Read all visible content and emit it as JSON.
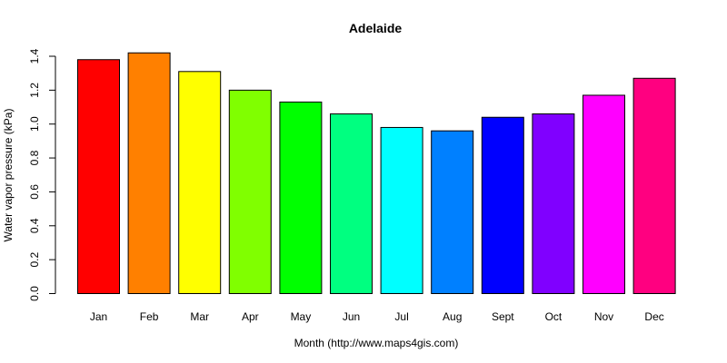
{
  "chart_data": {
    "type": "bar",
    "title": "Adelaide",
    "xlabel": "Month (http://www.maps4gis.com)",
    "ylabel": "Water vapor pressure (kPa)",
    "categories": [
      "Jan",
      "Feb",
      "Mar",
      "Apr",
      "May",
      "Jun",
      "Jul",
      "Aug",
      "Sept",
      "Oct",
      "Nov",
      "Dec"
    ],
    "values": [
      1.38,
      1.42,
      1.31,
      1.2,
      1.13,
      1.06,
      0.98,
      0.96,
      1.04,
      1.06,
      1.17,
      1.27
    ],
    "colors": [
      "#ff0000",
      "#ff8000",
      "#ffff00",
      "#80ff00",
      "#00ff00",
      "#00ff80",
      "#00ffff",
      "#0080ff",
      "#0000ff",
      "#8000ff",
      "#ff00ff",
      "#ff0080"
    ],
    "yticks": [
      "0.0",
      "0.2",
      "0.4",
      "0.6",
      "0.8",
      "1.0",
      "1.2",
      "1.4"
    ],
    "ylim": [
      0,
      1.4
    ],
    "grid": false,
    "legend": "none"
  }
}
